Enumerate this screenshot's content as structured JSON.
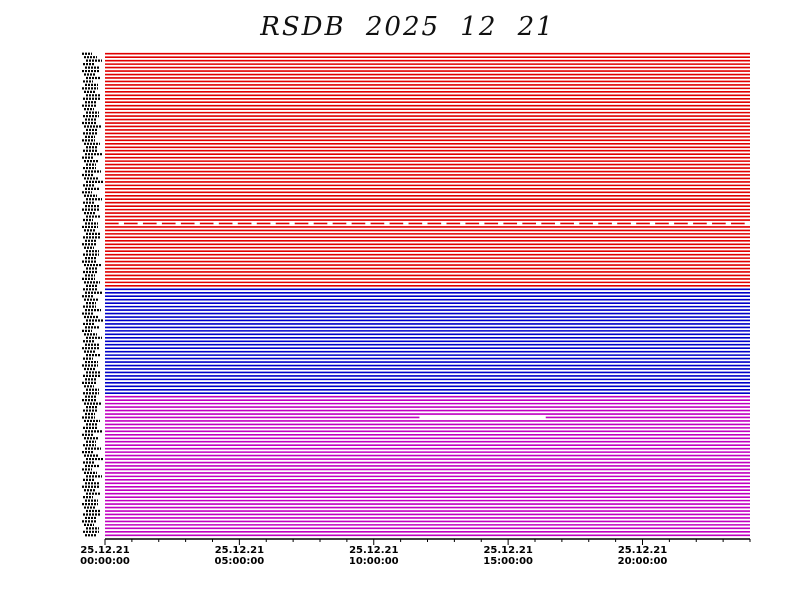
{
  "chart_data": {
    "type": "line",
    "title": "RSDB  2025  12  21",
    "xlabel": "",
    "ylabel": "",
    "x_range": [
      "25.12.21 00:00:00",
      "25.12.22 00:00:00"
    ],
    "x_ticks": [
      {
        "date": "25.12.21",
        "time": "00:00:00"
      },
      {
        "date": "25.12.21",
        "time": "05:00:00"
      },
      {
        "date": "25.12.21",
        "time": "10:00:00"
      },
      {
        "date": "25.12.21",
        "time": "15:00:00"
      },
      {
        "date": "25.12.21",
        "time": "20:00:00"
      }
    ],
    "minor_tick_hours": 1,
    "groups": [
      {
        "color": "#e00000",
        "line_count": 68
      },
      {
        "color": "#0000c8",
        "line_count": 31
      },
      {
        "color": "#c000c0",
        "line_count": 41
      }
    ],
    "gaps": [
      {
        "group": 0,
        "line": 49,
        "pattern": "intermittent"
      },
      {
        "group": 2,
        "line": 6,
        "start_hour": 11.7,
        "end_hour": 16.4
      }
    ]
  }
}
